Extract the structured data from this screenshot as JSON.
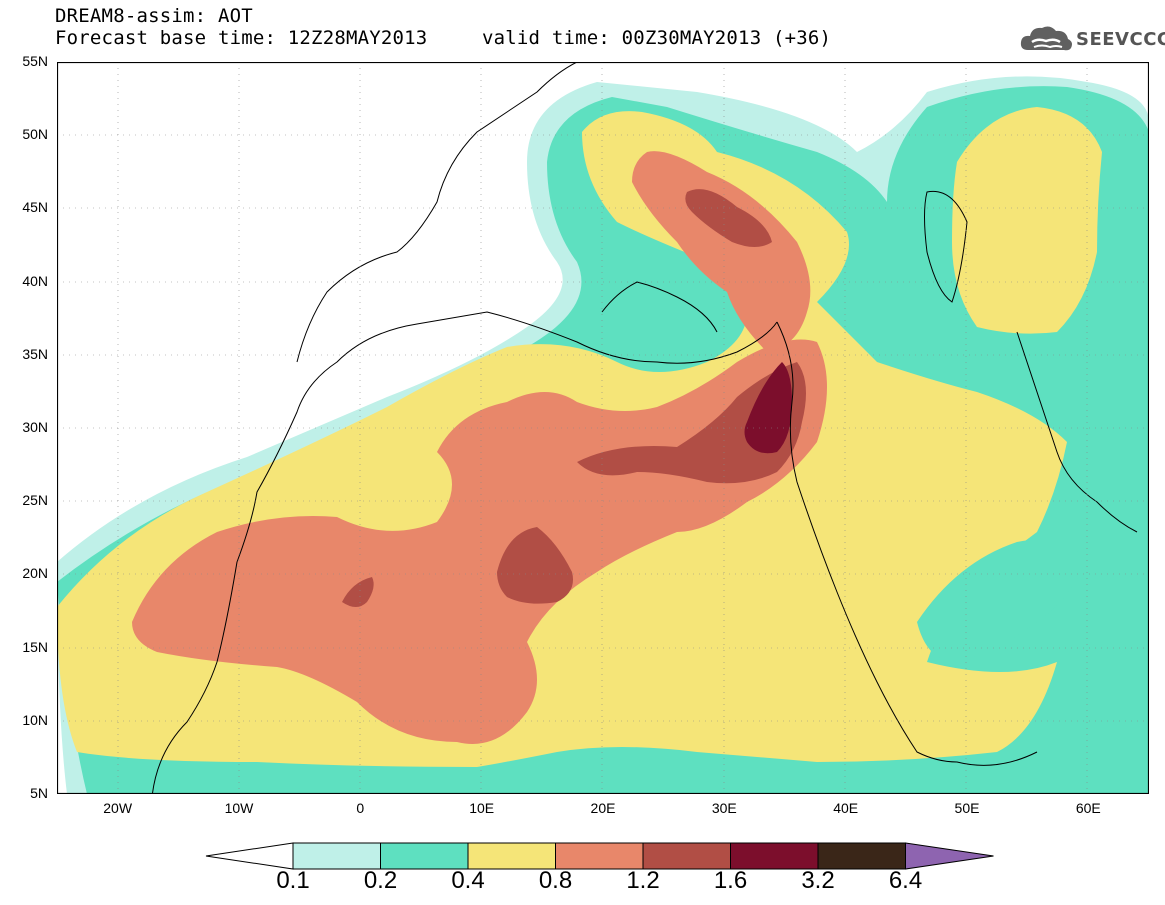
{
  "header": {
    "line1": "DREAM8-assim: AOT",
    "line2": "Forecast base time: 12Z28MAY2013",
    "line3": "valid time: 00Z30MAY2013 (+36)"
  },
  "logo": {
    "text": "SEEVCCC",
    "icon": "cloud-icon"
  },
  "map": {
    "lat_labels": [
      "55N",
      "50N",
      "45N",
      "40N",
      "35N",
      "30N",
      "25N",
      "20N",
      "15N",
      "10N",
      "5N"
    ],
    "lon_labels": [
      "20W",
      "10W",
      "0",
      "10E",
      "20E",
      "30E",
      "40E",
      "50E",
      "60E"
    ],
    "extent": {
      "lon_min": -25,
      "lon_max": 65,
      "lat_min": 5,
      "lat_max": 55
    },
    "field": "AOT"
  },
  "colorbar": {
    "labels": [
      "0.1",
      "0.2",
      "0.4",
      "0.8",
      "1.2",
      "1.6",
      "3.2",
      "6.4"
    ],
    "colors": [
      "#ffffff",
      "#bff0e8",
      "#5ee0c0",
      "#f5e578",
      "#e8876a",
      "#b14e45",
      "#7c0e2c",
      "#3a2618",
      "#8e64b0"
    ]
  }
}
